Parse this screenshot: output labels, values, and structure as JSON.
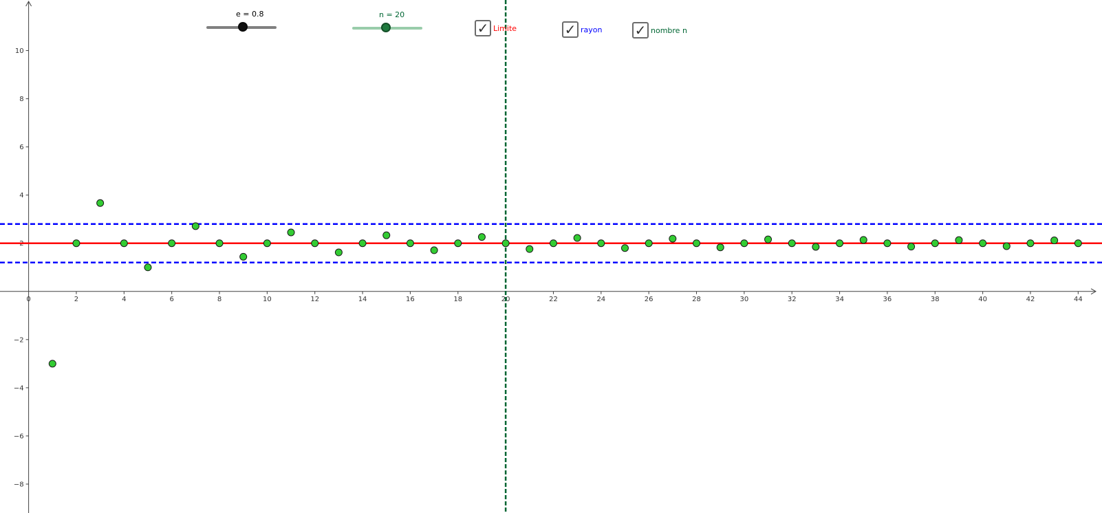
{
  "colors": {
    "limit": "#ff0000",
    "radius": "#0000ff",
    "n_marker": "#006633",
    "point_fill": "#33cc33",
    "axis": "#404040",
    "slider_e": "#808080",
    "slider_n": "#99ccaa",
    "slider_n_knob": "#1f7a3e"
  },
  "controls": {
    "slider_e": {
      "label": "e = 0.8",
      "value": 0.8
    },
    "slider_n": {
      "label": "n = 20",
      "value": 20
    },
    "checkbox_limit": {
      "label": "Limite",
      "checked": true
    },
    "checkbox_radius": {
      "label": "rayon",
      "checked": true
    },
    "checkbox_n": {
      "label": "nombre n",
      "checked": true
    }
  },
  "chart_data": {
    "type": "scatter",
    "xlim": [
      -1.2,
      45.0
    ],
    "ylim": [
      -9.2,
      12.1
    ],
    "x_ticks": [
      0,
      2,
      4,
      6,
      8,
      10,
      12,
      14,
      16,
      18,
      20,
      22,
      24,
      26,
      28,
      30,
      32,
      34,
      36,
      38,
      40,
      42,
      44
    ],
    "x_tick_labels": [
      "0",
      "2",
      "4",
      "6",
      "8",
      "10",
      "12",
      "14",
      "16",
      "18",
      "20",
      "22",
      "24",
      "26",
      "28",
      "30",
      "32",
      "34",
      "36",
      "38",
      "40",
      "42",
      "44"
    ],
    "y_ticks": [
      -8,
      -6,
      -4,
      -2,
      2,
      4,
      6,
      8,
      10
    ],
    "y_tick_labels": [
      "−8",
      "−6",
      "−4",
      "−2",
      "2",
      "4",
      "6",
      "8",
      "10"
    ],
    "grid": false,
    "points": {
      "x": [
        1,
        2,
        3,
        4,
        5,
        6,
        7,
        8,
        9,
        10,
        11,
        12,
        13,
        14,
        15,
        16,
        17,
        18,
        19,
        20,
        21,
        22,
        23,
        24,
        25,
        26,
        27,
        28,
        29,
        30,
        31,
        32,
        33,
        34,
        35,
        36,
        37,
        38,
        39,
        40,
        41,
        42,
        43,
        44
      ],
      "y": [
        -3.0,
        2.0,
        3.67,
        2.0,
        1.0,
        2.0,
        2.71,
        2.0,
        1.44,
        2.0,
        2.45,
        2.0,
        1.62,
        2.0,
        2.33,
        2.0,
        1.71,
        2.0,
        2.26,
        2.0,
        1.76,
        2.0,
        2.22,
        2.0,
        1.8,
        2.0,
        2.19,
        2.0,
        1.83,
        2.0,
        2.16,
        2.0,
        1.85,
        2.0,
        2.14,
        2.0,
        1.86,
        2.0,
        2.13,
        2.0,
        1.88,
        2.0,
        2.12,
        2.0
      ]
    },
    "limit_line": {
      "y": 2
    },
    "radius_lines": {
      "y_upper": 2.8,
      "y_lower": 1.2
    },
    "n_line": {
      "x": 20
    }
  }
}
